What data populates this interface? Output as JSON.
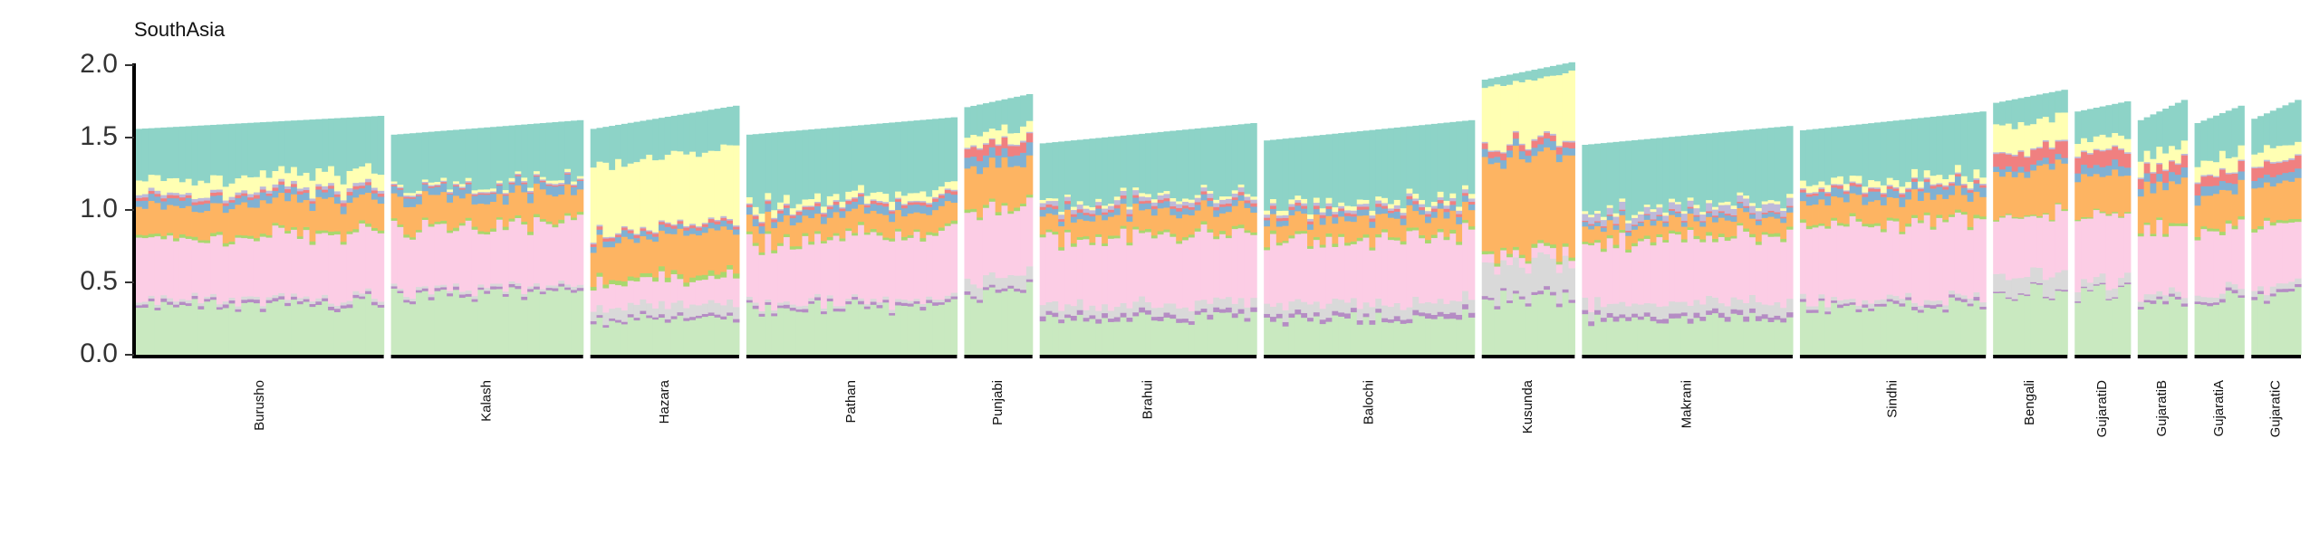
{
  "chart_data": {
    "type": "bar",
    "subtype": "stacked-admixture",
    "title": "SouthAsia",
    "xlabel": "",
    "ylabel": "",
    "ylim": [
      0,
      2.0
    ],
    "yticks": [
      0.0,
      0.5,
      1.0,
      1.5,
      2.0
    ],
    "ytick_labels": [
      "0.0",
      "0.5",
      "1.0",
      "1.5",
      "2.0"
    ],
    "grid": false,
    "legend": "none",
    "component_order": [
      "Green",
      "Purple",
      "Grey",
      "Pink",
      "LightGreen",
      "Orange",
      "Blue",
      "Red",
      "Lavender",
      "Yellow",
      "Teal"
    ],
    "component_colors": {
      "Green": "#c9e9c0",
      "Purple": "#b58cc4",
      "Grey": "#d9d9d9",
      "Pink": "#fccde5",
      "LightGreen": "#a9d86e",
      "Orange": "#fdb462",
      "Blue": "#80b1d3",
      "Red": "#f08080",
      "Lavender": "#bebada",
      "Yellow": "#ffffb3",
      "Teal": "#8dd3c7"
    },
    "groups": [
      {
        "label": "Burusho",
        "n": 40,
        "total": [
          1.56,
          1.65
        ],
        "components": {
          "Green": 0.34,
          "Purple": 0.02,
          "Grey": 0.02,
          "Pink": 0.42,
          "LightGreen": 0.02,
          "Orange": 0.2,
          "Blue": 0.05,
          "Red": 0.02,
          "Lavender": 0.02,
          "Yellow": 0.1,
          "Teal": 0.36
        }
      },
      {
        "label": "Kalash",
        "n": 31,
        "total": [
          1.52,
          1.62
        ],
        "components": {
          "Green": 0.43,
          "Purple": 0.02,
          "Grey": 0.02,
          "Pink": 0.44,
          "LightGreen": 0.02,
          "Orange": 0.19,
          "Blue": 0.06,
          "Red": 0.01,
          "Lavender": 0.01,
          "Yellow": 0.02,
          "Teal": 0.4
        }
      },
      {
        "label": "Hazara",
        "n": 24,
        "total": [
          1.56,
          1.72
        ],
        "components": {
          "Green": 0.24,
          "Purple": 0.02,
          "Grey": 0.08,
          "Pink": 0.18,
          "LightGreen": 0.03,
          "Orange": 0.28,
          "Blue": 0.04,
          "Red": 0.02,
          "Lavender": 0.01,
          "Yellow": 0.47,
          "Teal": 0.27
        }
      },
      {
        "label": "Pathan",
        "n": 34,
        "total": [
          1.52,
          1.64
        ],
        "components": {
          "Green": 0.32,
          "Purple": 0.02,
          "Grey": 0.02,
          "Pink": 0.44,
          "LightGreen": 0.02,
          "Orange": 0.14,
          "Blue": 0.05,
          "Red": 0.02,
          "Lavender": 0.01,
          "Yellow": 0.05,
          "Teal": 0.49
        }
      },
      {
        "label": "Punjabi",
        "n": 11,
        "total": [
          1.71,
          1.8
        ],
        "components": {
          "Green": 0.44,
          "Purple": 0.02,
          "Grey": 0.08,
          "Pink": 0.47,
          "LightGreen": 0.02,
          "Orange": 0.28,
          "Blue": 0.08,
          "Red": 0.07,
          "Lavender": 0.01,
          "Yellow": 0.08,
          "Teal": 0.21
        }
      },
      {
        "label": "Brahui",
        "n": 35,
        "total": [
          1.46,
          1.6
        ],
        "components": {
          "Green": 0.26,
          "Purple": 0.03,
          "Grey": 0.07,
          "Pink": 0.47,
          "LightGreen": 0.02,
          "Orange": 0.14,
          "Blue": 0.04,
          "Red": 0.02,
          "Lavender": 0.03,
          "Yellow": 0.02,
          "Teal": 0.44
        }
      },
      {
        "label": "Balochi",
        "n": 34,
        "total": [
          1.48,
          1.62
        ],
        "components": {
          "Green": 0.25,
          "Purple": 0.03,
          "Grey": 0.08,
          "Pink": 0.44,
          "LightGreen": 0.02,
          "Orange": 0.13,
          "Blue": 0.04,
          "Red": 0.02,
          "Lavender": 0.02,
          "Yellow": 0.03,
          "Teal": 0.48
        }
      },
      {
        "label": "Kusunda",
        "n": 15,
        "total": [
          1.9,
          2.02
        ],
        "components": {
          "Green": 0.38,
          "Purple": 0.02,
          "Grey": 0.22,
          "Pink": 0.06,
          "LightGreen": 0.02,
          "Orange": 0.62,
          "Blue": 0.05,
          "Red": 0.04,
          "Lavender": 0.01,
          "Yellow": 0.42,
          "Teal": 0.06
        }
      },
      {
        "label": "Makrani",
        "n": 34,
        "total": [
          1.45,
          1.58
        ],
        "components": {
          "Green": 0.25,
          "Purple": 0.03,
          "Grey": 0.08,
          "Pink": 0.44,
          "LightGreen": 0.02,
          "Orange": 0.1,
          "Blue": 0.03,
          "Red": 0.01,
          "Lavender": 0.05,
          "Yellow": 0.02,
          "Teal": 0.48
        }
      },
      {
        "label": "Sindhi",
        "n": 30,
        "total": [
          1.55,
          1.68
        ],
        "components": {
          "Green": 0.35,
          "Purple": 0.02,
          "Grey": 0.03,
          "Pink": 0.52,
          "LightGreen": 0.02,
          "Orange": 0.15,
          "Blue": 0.06,
          "Red": 0.02,
          "Lavender": 0.01,
          "Yellow": 0.05,
          "Teal": 0.4
        }
      },
      {
        "label": "Bengali",
        "n": 12,
        "total": [
          1.74,
          1.83
        ],
        "components": {
          "Green": 0.43,
          "Purple": 0.01,
          "Grey": 0.12,
          "Pink": 0.41,
          "LightGreen": 0.01,
          "Orange": 0.3,
          "Blue": 0.04,
          "Red": 0.1,
          "Lavender": 0.01,
          "Yellow": 0.19,
          "Teal": 0.17
        }
      },
      {
        "label": "GujaratiD",
        "n": 9,
        "total": [
          1.68,
          1.75
        ],
        "components": {
          "Green": 0.44,
          "Purple": 0.01,
          "Grey": 0.06,
          "Pink": 0.44,
          "LightGreen": 0.01,
          "Orange": 0.28,
          "Blue": 0.06,
          "Red": 0.1,
          "Lavender": 0.01,
          "Yellow": 0.09,
          "Teal": 0.22
        }
      },
      {
        "label": "GujaratiB",
        "n": 8,
        "total": [
          1.62,
          1.76
        ],
        "components": {
          "Green": 0.38,
          "Purple": 0.02,
          "Grey": 0.04,
          "Pink": 0.44,
          "LightGreen": 0.02,
          "Orange": 0.26,
          "Blue": 0.06,
          "Red": 0.07,
          "Lavender": 0.01,
          "Yellow": 0.1,
          "Teal": 0.28
        }
      },
      {
        "label": "GujaratiA",
        "n": 8,
        "total": [
          1.6,
          1.72
        ],
        "components": {
          "Green": 0.39,
          "Purple": 0.02,
          "Grey": 0.04,
          "Pink": 0.42,
          "LightGreen": 0.02,
          "Orange": 0.24,
          "Blue": 0.06,
          "Red": 0.07,
          "Lavender": 0.01,
          "Yellow": 0.1,
          "Teal": 0.29
        }
      },
      {
        "label": "GujaratiC",
        "n": 8,
        "total": [
          1.63,
          1.76
        ],
        "components": {
          "Green": 0.42,
          "Purple": 0.02,
          "Grey": 0.04,
          "Pink": 0.44,
          "LightGreen": 0.02,
          "Orange": 0.25,
          "Blue": 0.06,
          "Red": 0.08,
          "Lavender": 0.01,
          "Yellow": 0.1,
          "Teal": 0.26
        }
      }
    ]
  }
}
